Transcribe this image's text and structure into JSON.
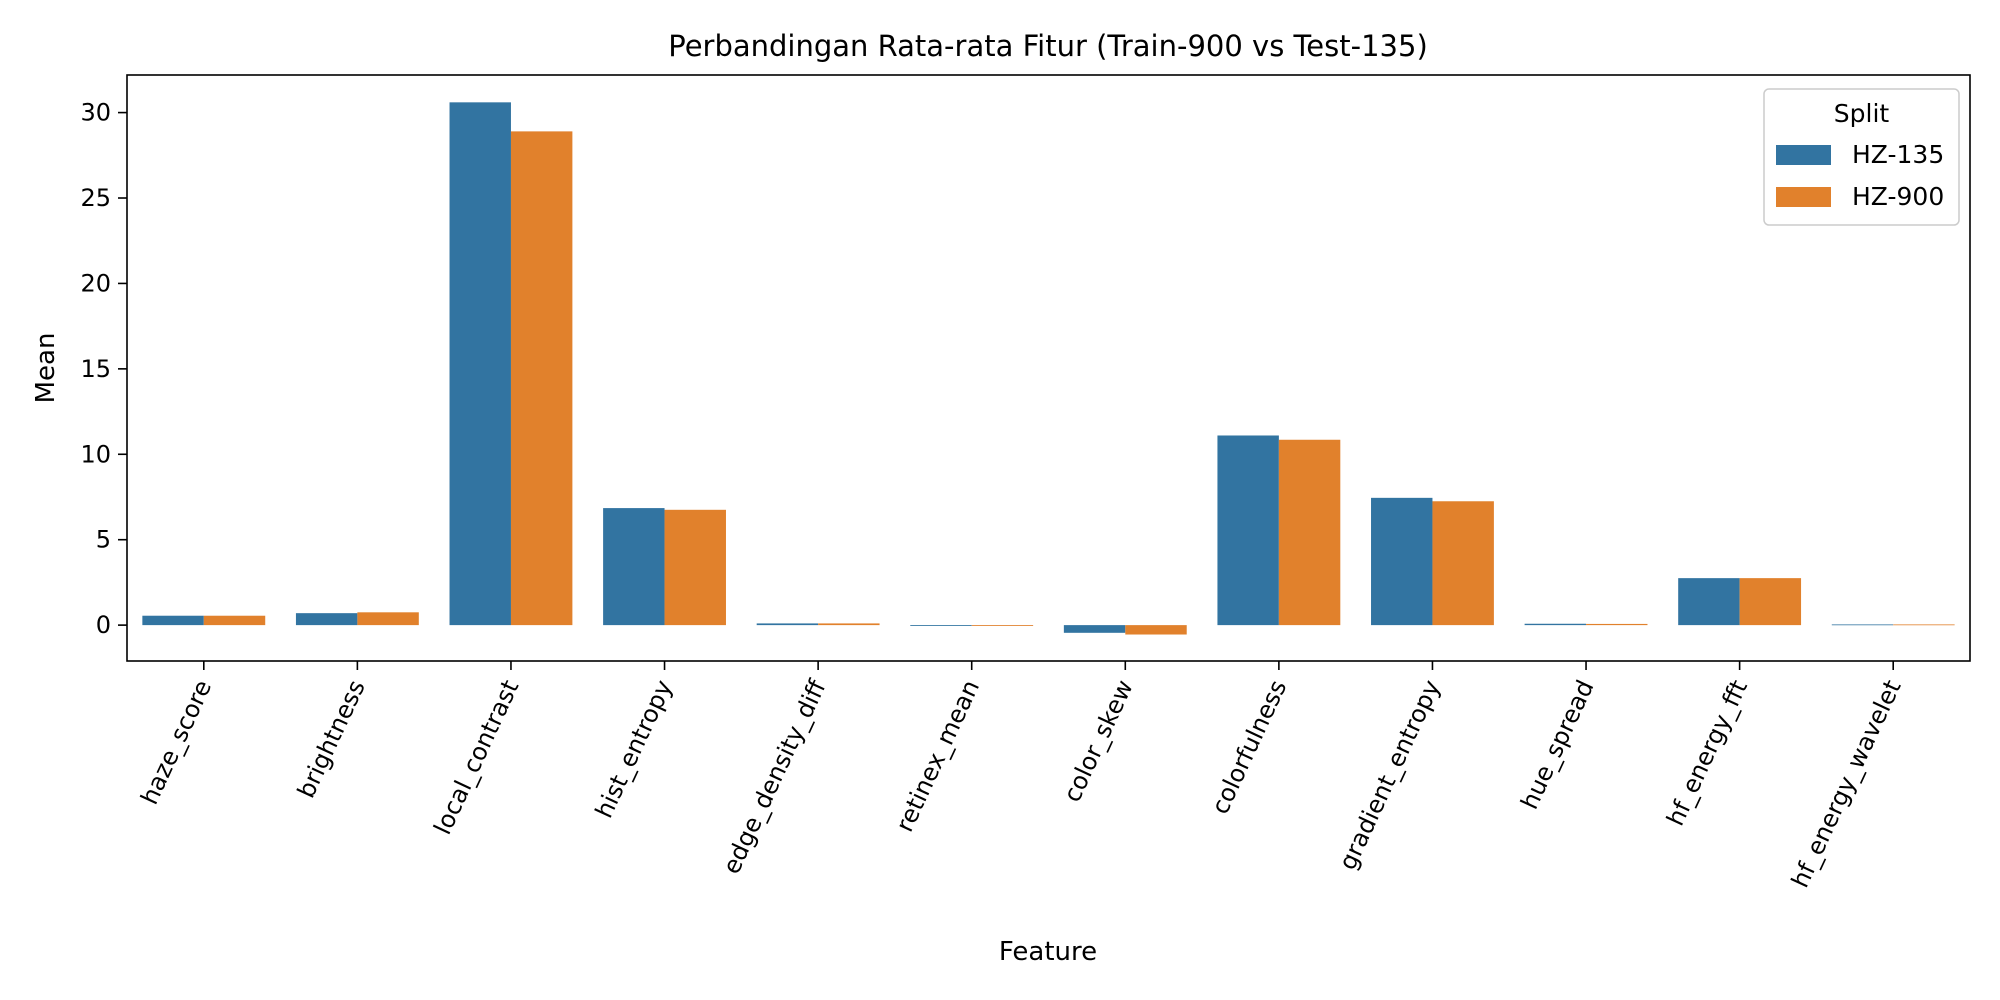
{
  "chart_data": {
    "type": "bar",
    "title": "Perbandingan Rata-rata Fitur (Train-900 vs Test-135)",
    "xlabel": "Feature",
    "ylabel": "Mean",
    "ylim": [
      -2.1,
      32.2
    ],
    "yticks": [
      0,
      5,
      10,
      15,
      20,
      25,
      30
    ],
    "grid": false,
    "legend": {
      "title": "Split",
      "placement": "top-right"
    },
    "categories": [
      "haze_score",
      "brightness",
      "local_contrast",
      "hist_entropy",
      "edge_density_diff",
      "retinex_mean",
      "color_skew",
      "colorfulness",
      "gradient_entropy",
      "hue_spread",
      "hf_energy_fft",
      "hf_energy_wavelet"
    ],
    "series": [
      {
        "name": "HZ-135",
        "color": "#3274a1",
        "values": [
          0.55,
          0.7,
          30.6,
          6.85,
          0.1,
          -0.05,
          -0.45,
          11.1,
          7.45,
          0.08,
          2.75,
          0.04
        ]
      },
      {
        "name": "HZ-900",
        "color": "#e1812c",
        "values": [
          0.55,
          0.75,
          28.9,
          6.75,
          0.1,
          -0.05,
          -0.55,
          10.85,
          7.25,
          0.07,
          2.75,
          0.04
        ]
      }
    ]
  }
}
